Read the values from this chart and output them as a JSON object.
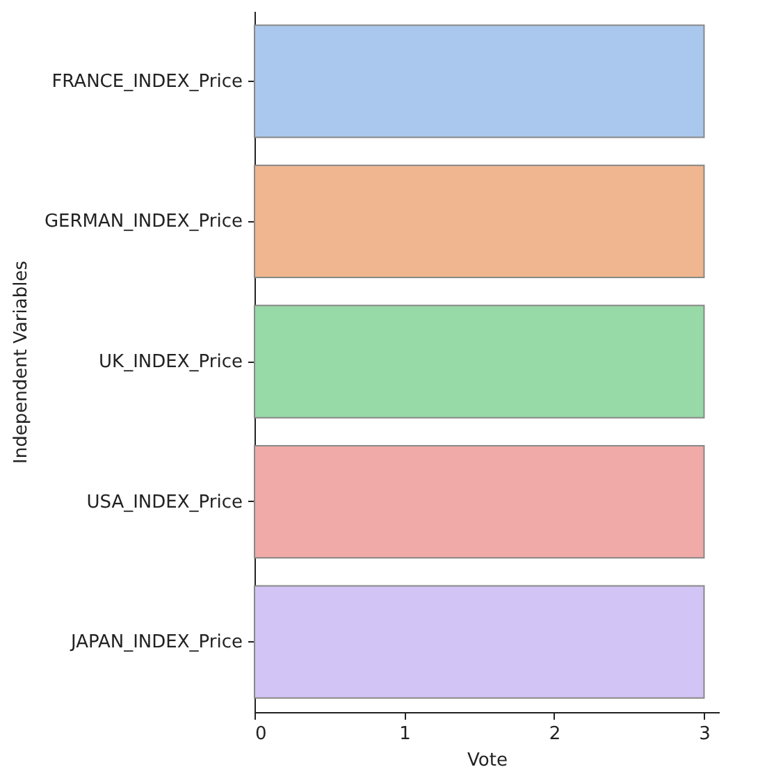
{
  "chart_data": {
    "type": "bar",
    "orientation": "horizontal",
    "xlabel": "Vote",
    "ylabel": "Independent Variables",
    "categories": [
      "FRANCE_INDEX_Price",
      "GERMAN_INDEX_Price",
      "UK_INDEX_Price",
      "USA_INDEX_Price",
      "JAPAN_INDEX_Price"
    ],
    "values": [
      3,
      3,
      3,
      3,
      3
    ],
    "colors": [
      "#aac8ee",
      "#f0b690",
      "#97d9a7",
      "#f0aaa7",
      "#d2c4f5"
    ],
    "xlim": [
      0,
      3.1
    ],
    "xticks": [
      0,
      1,
      2,
      3
    ],
    "grid": false
  }
}
